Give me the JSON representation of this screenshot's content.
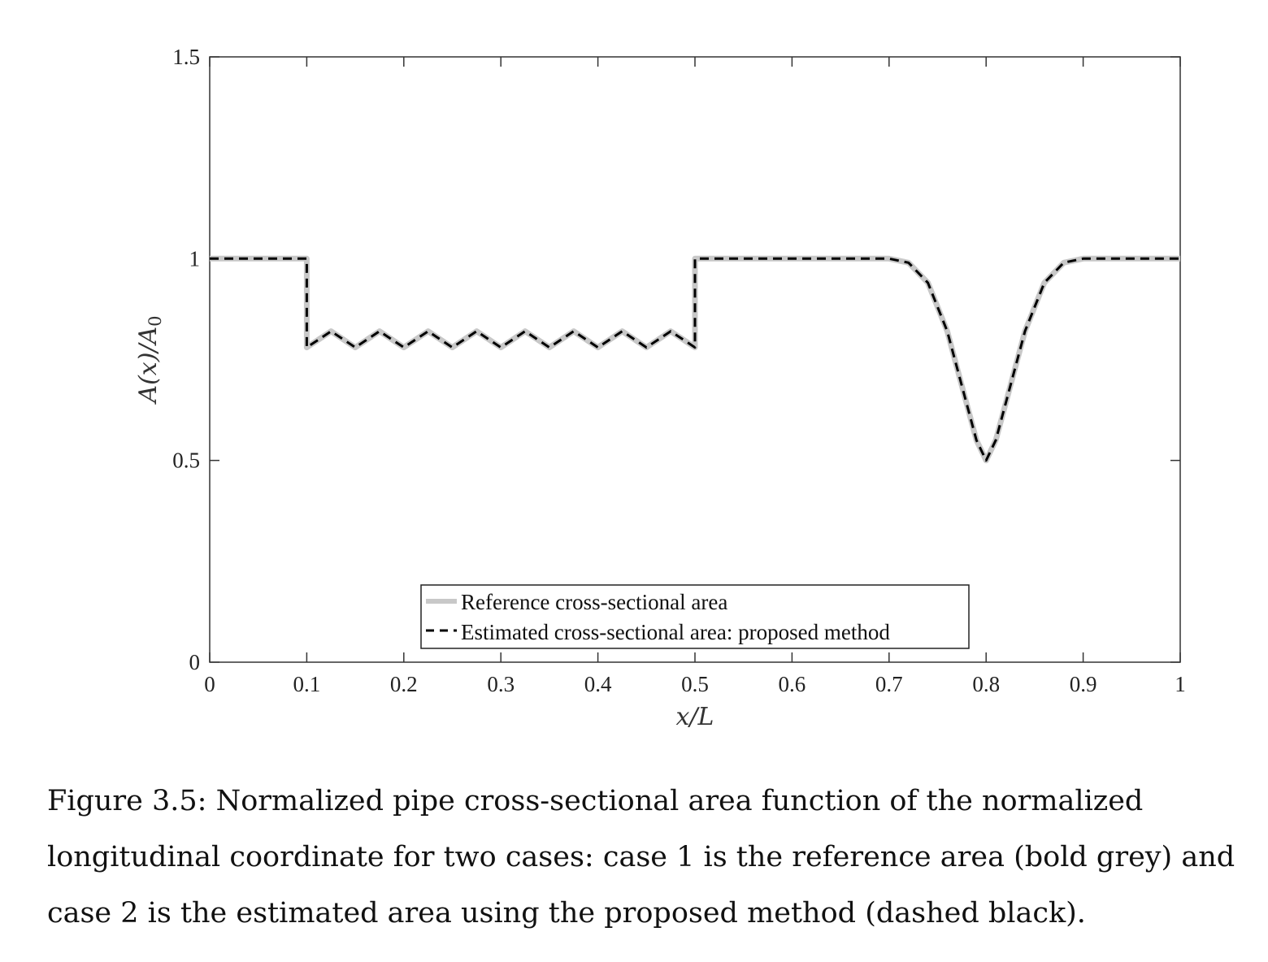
{
  "chart_data": {
    "type": "line",
    "xlabel": "x/L",
    "ylabel": "A(x)/A₀",
    "xlim": [
      0,
      1
    ],
    "ylim": [
      0,
      1.5
    ],
    "xticks": [
      "0",
      "0.1",
      "0.2",
      "0.3",
      "0.4",
      "0.5",
      "0.6",
      "0.7",
      "0.8",
      "0.9",
      "1"
    ],
    "yticks": [
      "0",
      "0.5",
      "1",
      "1.5"
    ],
    "grid": false,
    "legend_position": "bottom-center",
    "series": [
      {
        "name": "Reference cross-sectional area",
        "style": "solid-bold",
        "color": "#c8c8c8",
        "x": [
          0,
          0.1,
          0.1,
          0.125,
          0.15,
          0.175,
          0.2,
          0.225,
          0.25,
          0.275,
          0.3,
          0.325,
          0.35,
          0.375,
          0.4,
          0.425,
          0.45,
          0.475,
          0.5,
          0.5,
          0.7,
          0.72,
          0.74,
          0.76,
          0.78,
          0.79,
          0.8,
          0.81,
          0.82,
          0.84,
          0.86,
          0.88,
          0.9,
          1.0
        ],
        "y": [
          1,
          1,
          0.78,
          0.82,
          0.78,
          0.82,
          0.78,
          0.82,
          0.78,
          0.82,
          0.78,
          0.82,
          0.78,
          0.82,
          0.78,
          0.82,
          0.78,
          0.82,
          0.78,
          1,
          1,
          0.99,
          0.94,
          0.82,
          0.64,
          0.55,
          0.5,
          0.55,
          0.64,
          0.82,
          0.94,
          0.99,
          1,
          1
        ]
      },
      {
        "name": "Estimated cross-sectional area: proposed method",
        "style": "dashed",
        "color": "#000000",
        "x": [
          0,
          0.1,
          0.1,
          0.125,
          0.15,
          0.175,
          0.2,
          0.225,
          0.25,
          0.275,
          0.3,
          0.325,
          0.35,
          0.375,
          0.4,
          0.425,
          0.45,
          0.475,
          0.5,
          0.5,
          0.7,
          0.72,
          0.74,
          0.76,
          0.78,
          0.79,
          0.8,
          0.81,
          0.82,
          0.84,
          0.86,
          0.88,
          0.9,
          1.0
        ],
        "y": [
          1,
          1,
          0.78,
          0.82,
          0.78,
          0.82,
          0.78,
          0.82,
          0.78,
          0.82,
          0.78,
          0.82,
          0.78,
          0.82,
          0.78,
          0.82,
          0.78,
          0.82,
          0.78,
          1,
          1,
          0.99,
          0.94,
          0.82,
          0.64,
          0.55,
          0.5,
          0.55,
          0.64,
          0.82,
          0.94,
          0.99,
          1,
          1
        ]
      }
    ]
  },
  "caption": "Figure 3.5: Normalized pipe cross-sectional area function of the normalized longitudinal coordinate for two cases: case 1 is the reference area (bold grey) and case 2 is the estimated area using the proposed method (dashed black)."
}
